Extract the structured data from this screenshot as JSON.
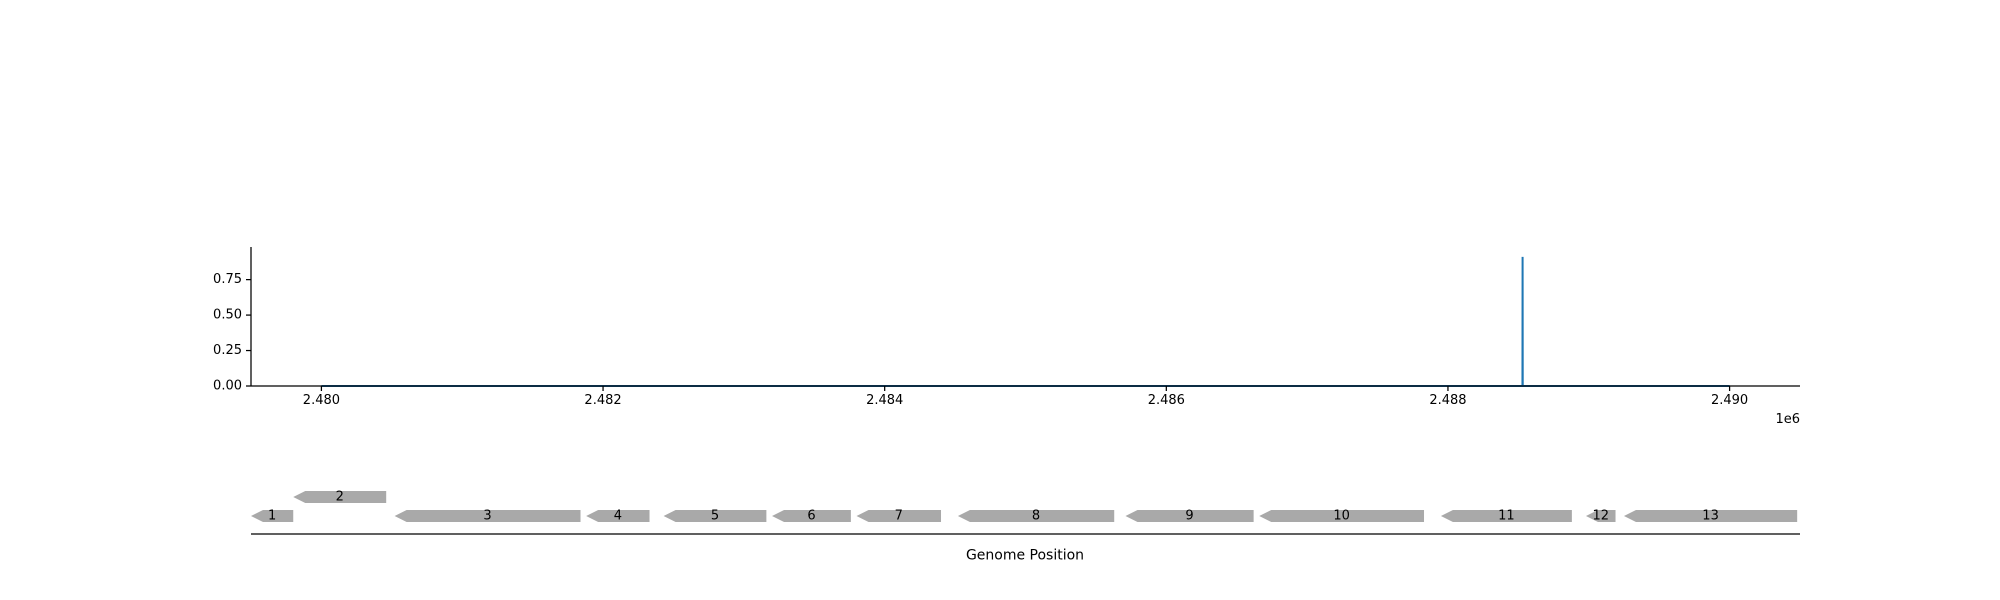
{
  "chart_data": [
    {
      "type": "line",
      "title": "",
      "xlabel": "",
      "ylabel": "",
      "x_offset_label": "1e6",
      "xlim": [
        2479500,
        2490500
      ],
      "ylim": [
        0,
        0.98
      ],
      "x_ticks": [
        2480000,
        2482000,
        2484000,
        2486000,
        2488000,
        2490000
      ],
      "x_tick_labels": [
        "2.480",
        "2.482",
        "2.484",
        "2.486",
        "2.488",
        "2.490"
      ],
      "y_ticks": [
        0.0,
        0.25,
        0.5,
        0.75
      ],
      "y_tick_labels": [
        "0.00",
        "0.25",
        "0.50",
        "0.75"
      ],
      "grid": false,
      "series": [
        {
          "color": "#1f77b4",
          "x": [
            2480000,
            2488529,
            2488530,
            2488531,
            2490000
          ],
          "y": [
            0.0,
            0.0,
            0.91,
            0.0,
            0.0
          ]
        }
      ]
    },
    {
      "type": "gene_map",
      "xlabel": "Genome Position",
      "gene_color": "#a9a9a9",
      "genes": [
        {
          "label": "1",
          "start": 2479500,
          "end": 2479800,
          "strand": "-",
          "row": 0
        },
        {
          "label": "2",
          "start": 2479800,
          "end": 2480460,
          "strand": "-",
          "row": 1
        },
        {
          "label": "3",
          "start": 2480520,
          "end": 2481840,
          "strand": "-",
          "row": 0
        },
        {
          "label": "4",
          "start": 2481880,
          "end": 2482330,
          "strand": "-",
          "row": 0
        },
        {
          "label": "5",
          "start": 2482430,
          "end": 2483160,
          "strand": "-",
          "row": 0
        },
        {
          "label": "6",
          "start": 2483200,
          "end": 2483760,
          "strand": "-",
          "row": 0
        },
        {
          "label": "7",
          "start": 2483800,
          "end": 2484400,
          "strand": "-",
          "row": 0
        },
        {
          "label": "8",
          "start": 2484520,
          "end": 2485630,
          "strand": "-",
          "row": 0
        },
        {
          "label": "9",
          "start": 2485710,
          "end": 2486620,
          "strand": "-",
          "row": 0
        },
        {
          "label": "10",
          "start": 2486660,
          "end": 2487830,
          "strand": "-",
          "row": 0
        },
        {
          "label": "11",
          "start": 2487950,
          "end": 2488880,
          "strand": "-",
          "row": 0
        },
        {
          "label": "12",
          "start": 2488980,
          "end": 2489190,
          "strand": "-",
          "row": 0
        },
        {
          "label": "13",
          "start": 2489250,
          "end": 2490480,
          "strand": "-",
          "row": 0
        }
      ]
    }
  ]
}
